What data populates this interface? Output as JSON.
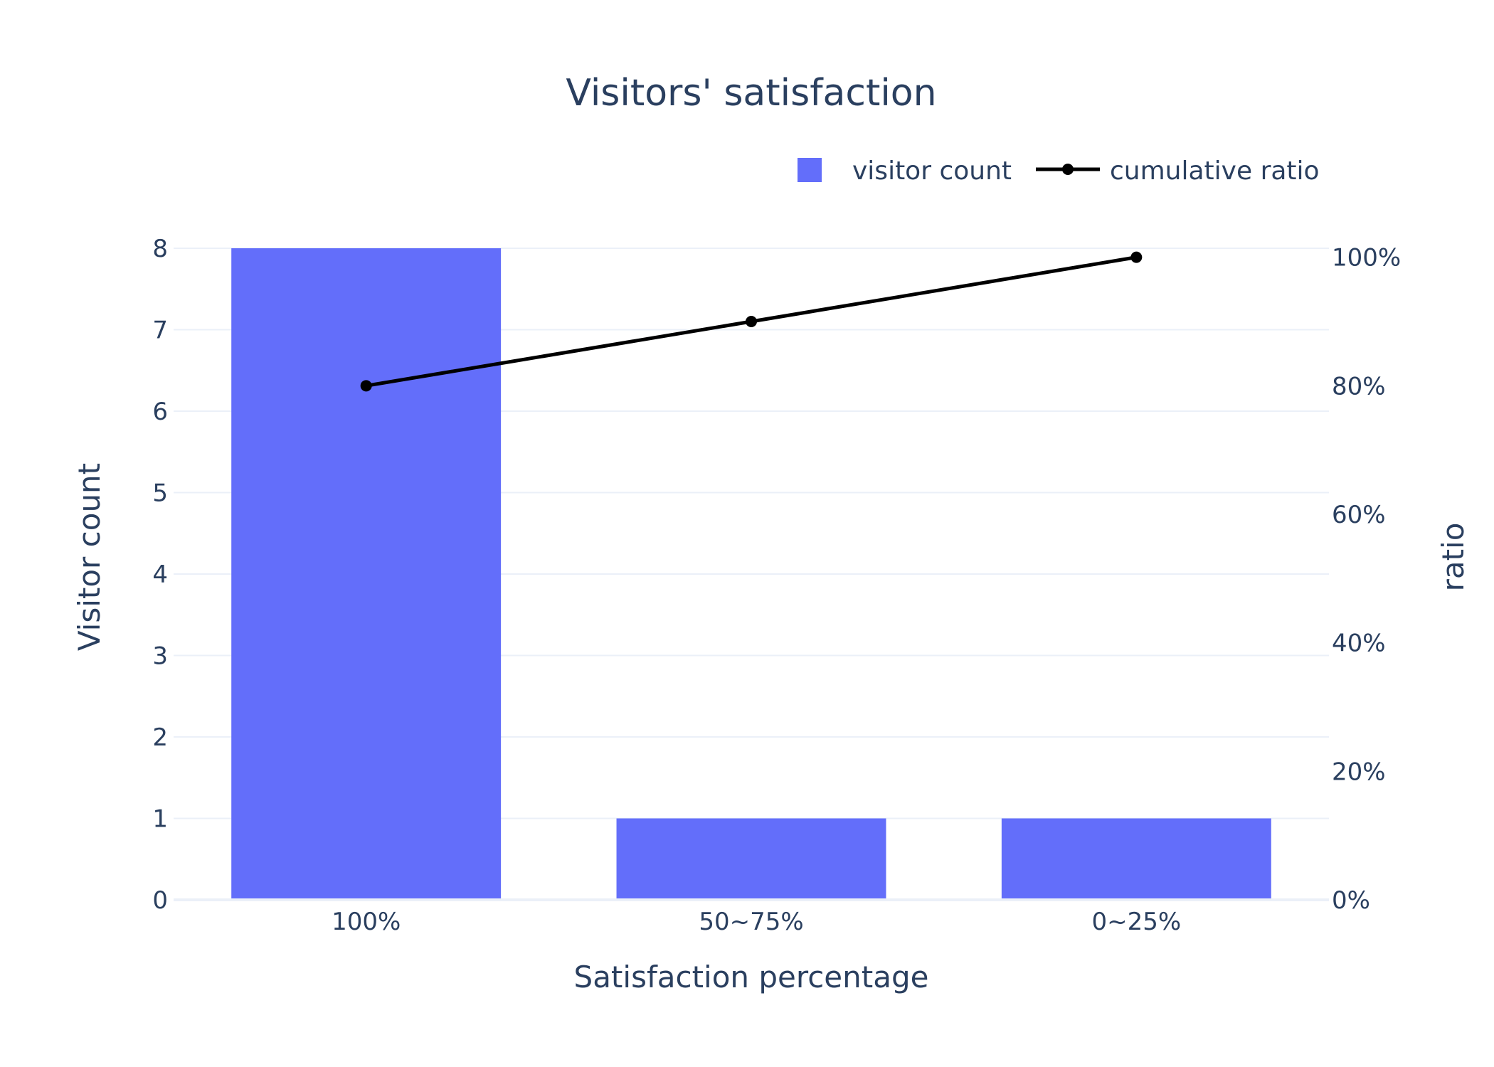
{
  "chart_data": {
    "type": "bar",
    "title": "Visitors' satisfaction",
    "xlabel": "Satisfaction percentage",
    "ylabel": "Visitor count",
    "y2label": "ratio",
    "categories": [
      "100%",
      "50~75%",
      "0~25%"
    ],
    "series": [
      {
        "name": "visitor count",
        "type": "bar",
        "axis": "y",
        "color": "#636efa",
        "values": [
          8,
          1,
          1
        ]
      },
      {
        "name": "cumulative ratio",
        "type": "line",
        "axis": "y2",
        "color": "#000000",
        "values": [
          0.8,
          0.9,
          1.0
        ]
      }
    ],
    "ylim": [
      0,
      8
    ],
    "y2lim": [
      0,
      1.014
    ],
    "y_ticks": [
      "0",
      "1",
      "2",
      "3",
      "4",
      "5",
      "6",
      "7",
      "8"
    ],
    "y2_ticks": [
      "0%",
      "20%",
      "40%",
      "60%",
      "80%",
      "100%"
    ],
    "grid": true,
    "legend_position": "top-right"
  }
}
